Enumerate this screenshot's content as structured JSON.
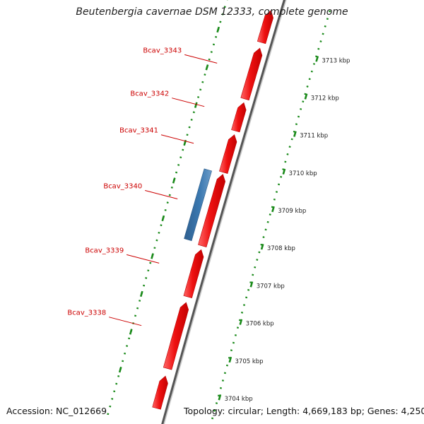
{
  "title": "Beutenbergia cavernae DSM 12333, complete genome",
  "footer": {
    "accession": "Accession: NC_012669",
    "summary": "Topology: circular; Length: 4,669,183 bp; Genes: 4,250"
  },
  "colors": {
    "forward_gene": "#ee1111",
    "reverse_gene": "#3a78b0",
    "label": "#cc0000",
    "tick": "#1a8a1a",
    "backbone": "#888888"
  },
  "genes": [
    {
      "name": "",
      "strand": "+",
      "start_kbp": 3713.85,
      "end_kbp": 3713.0
    },
    {
      "name": "Bcav_3343",
      "strand": "+",
      "start_kbp": 3712.85,
      "end_kbp": 3711.5
    },
    {
      "name": "Bcav_3342",
      "strand": "+",
      "start_kbp": 3711.4,
      "end_kbp": 3710.65
    },
    {
      "name": "Bcav_3341",
      "strand": "+",
      "start_kbp": 3710.55,
      "end_kbp": 3709.55
    },
    {
      "name": "Bcav_3340",
      "strand": "-",
      "start_kbp": 3709.5,
      "end_kbp": 3707.65
    },
    {
      "name": "",
      "strand": "+",
      "start_kbp": 3709.5,
      "end_kbp": 3707.6
    },
    {
      "name": "Bcav_3339",
      "strand": "+",
      "start_kbp": 3707.5,
      "end_kbp": 3706.25
    },
    {
      "name": "Bcav_3338",
      "strand": "+",
      "start_kbp": 3706.1,
      "end_kbp": 3704.35
    },
    {
      "name": "",
      "strand": "+",
      "start_kbp": 3704.15,
      "end_kbp": 3703.3
    }
  ],
  "ticks": [
    {
      "kbp": 3713,
      "label": "3713 kbp"
    },
    {
      "kbp": 3712,
      "label": "3712 kbp"
    },
    {
      "kbp": 3711,
      "label": "3711 kbp"
    },
    {
      "kbp": 3710,
      "label": "3710 kbp"
    },
    {
      "kbp": 3709,
      "label": "3709 kbp"
    },
    {
      "kbp": 3708,
      "label": "3708 kbp"
    },
    {
      "kbp": 3707,
      "label": "3707 kbp"
    },
    {
      "kbp": 3706,
      "label": "3706 kbp"
    },
    {
      "kbp": 3705,
      "label": "3705 kbp"
    },
    {
      "kbp": 3704,
      "label": "3704 kbp"
    }
  ],
  "view": {
    "min_kbp": 3703.0,
    "max_kbp": 3714.0
  }
}
